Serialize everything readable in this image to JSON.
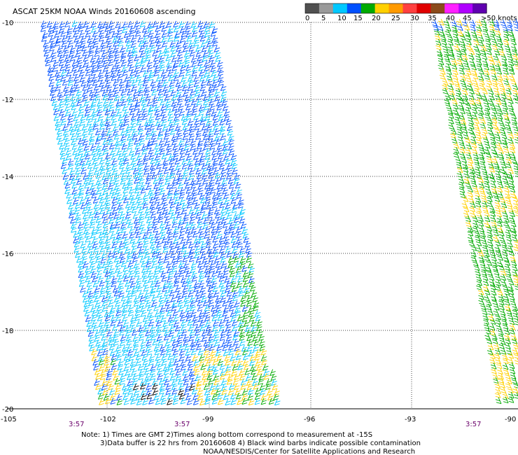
{
  "title": "ASCAT 25KM NOAA Winds 20160608 ascending",
  "legend": {
    "ticks": [
      "0",
      "5",
      "10",
      "15",
      "20",
      "25",
      "30",
      "35",
      "40",
      "45",
      ">50 knots"
    ],
    "colors": [
      "#505050",
      "#9a9a9a",
      "#00c8ff",
      "#0050ff",
      "#00aa00",
      "#ffd000",
      "#ff9a00",
      "#ff4040",
      "#e00000",
      "#8b4a1a",
      "#ff20ff",
      "#b000ff",
      "#6000b0"
    ]
  },
  "axes": {
    "latitudes": [
      "-10",
      "-12",
      "-14",
      "-16",
      "-18",
      "-20"
    ],
    "longitudes": [
      "-105",
      "-102",
      "-99",
      "-96",
      "-93",
      "-90"
    ]
  },
  "pass_times": [
    "3:57",
    "3:57",
    "3:57"
  ],
  "notes": [
    "Note: 1) Times are GMT 2)Times along bottom correspond to measurement at -15S",
    "3)Data buffer is 22 hrs from 20160608 4) Black wind barbs indicate possible contamination",
    "NOAA/NESDIS/Center for Satellite Applications and Research"
  ]
}
